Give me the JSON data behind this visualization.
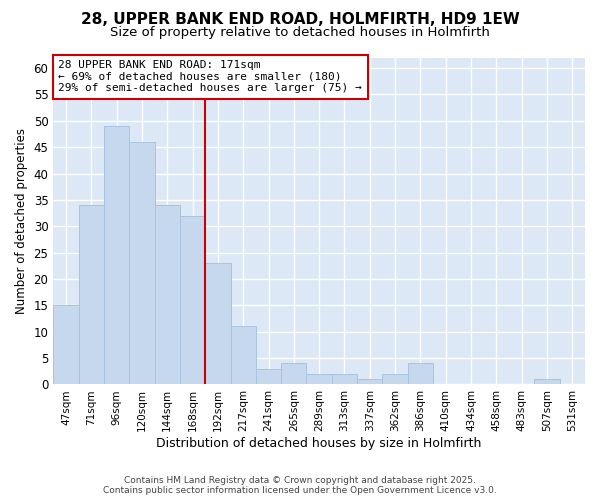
{
  "title_line1": "28, UPPER BANK END ROAD, HOLMFIRTH, HD9 1EW",
  "title_line2": "Size of property relative to detached houses in Holmfirth",
  "xlabel": "Distribution of detached houses by size in Holmfirth",
  "ylabel": "Number of detached properties",
  "categories": [
    "47sqm",
    "71sqm",
    "96sqm",
    "120sqm",
    "144sqm",
    "168sqm",
    "192sqm",
    "217sqm",
    "241sqm",
    "265sqm",
    "289sqm",
    "313sqm",
    "337sqm",
    "362sqm",
    "386sqm",
    "410sqm",
    "434sqm",
    "458sqm",
    "483sqm",
    "507sqm",
    "531sqm"
  ],
  "values": [
    15,
    34,
    49,
    46,
    34,
    32,
    23,
    11,
    3,
    4,
    2,
    2,
    1,
    2,
    4,
    0,
    0,
    0,
    0,
    1,
    0
  ],
  "bar_color": "#c5d8ee",
  "bar_edge_color": "#a8c4e0",
  "ylim": [
    0,
    62
  ],
  "yticks": [
    0,
    5,
    10,
    15,
    20,
    25,
    30,
    35,
    40,
    45,
    50,
    55,
    60
  ],
  "vline_index": 5,
  "vline_color": "#cc0000",
  "annotation_box_text": "28 UPPER BANK END ROAD: 171sqm\n← 69% of detached houses are smaller (180)\n29% of semi-detached houses are larger (75) →",
  "box_edge_color": "#cc0000",
  "box_face_color": "white",
  "annotation_fontsize": 8.0,
  "footer_text": "Contains HM Land Registry data © Crown copyright and database right 2025.\nContains public sector information licensed under the Open Government Licence v3.0.",
  "bg_color": "#ffffff",
  "plot_bg_color": "#dce8f5",
  "grid_color": "#ffffff",
  "title_fontsize": 11,
  "subtitle_fontsize": 9.5,
  "ylabel_fontsize": 8.5,
  "xlabel_fontsize": 9
}
